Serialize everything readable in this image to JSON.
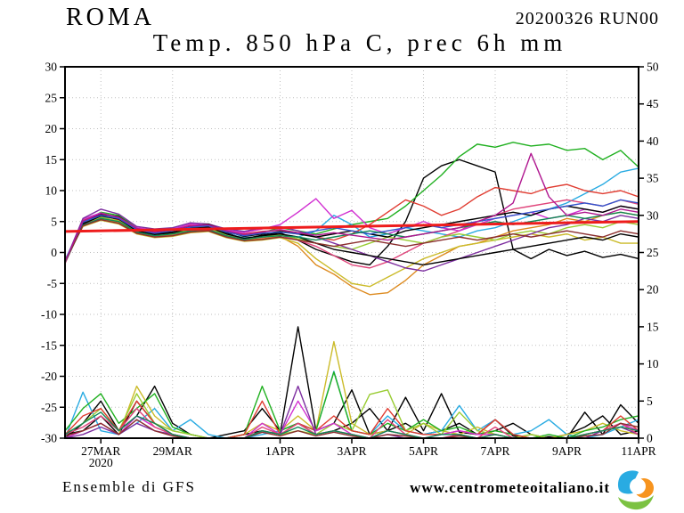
{
  "header": {
    "station": "ROMA",
    "run": "20200326 RUN00",
    "title": "Temp. 850 hPa C, prec 6h mm"
  },
  "footer": {
    "source": "Ensemble di GFS",
    "website": "www.centrometeoitaliano.it",
    "logo_colors": {
      "blue": "#29abe2",
      "orange": "#f7941e",
      "green": "#7cc242"
    }
  },
  "chart_data": {
    "type": "line",
    "title": "Temp. 850 hPa C, prec 6h mm",
    "model": "GFS ensemble",
    "time_steps": 33,
    "step_hours": 12,
    "left_axis": {
      "min": -30,
      "max": 30,
      "step": 5,
      "unit": "C"
    },
    "right_axis": {
      "min": 0,
      "max": 50,
      "step": 5,
      "unit": "mm"
    },
    "grid": "dotted",
    "x_ticks": [
      {
        "pos": 2,
        "label": "27MAR",
        "sublabel": "2020"
      },
      {
        "pos": 6,
        "label": "29MAR"
      },
      {
        "pos": 12,
        "label": "1APR"
      },
      {
        "pos": 16,
        "label": "3APR"
      },
      {
        "pos": 20,
        "label": "5APR"
      },
      {
        "pos": 24,
        "label": "7APR"
      },
      {
        "pos": 28,
        "label": "9APR"
      },
      {
        "pos": 32,
        "label": "11APR"
      }
    ],
    "mean_line": {
      "id": "climate-mean",
      "color": "#ee1c1c",
      "start": 3.4,
      "end": 5.0,
      "width": 3
    },
    "temperature_series": [
      {
        "id": "black-a",
        "color": "#000000",
        "values": [
          -1.5,
          4.5,
          6.0,
          5.5,
          3.6,
          3.0,
          3.4,
          4.0,
          4.4,
          3.2,
          2.2,
          2.8,
          3.2,
          2.0,
          0.5,
          -0.5,
          -1.5,
          -2.0,
          1.0,
          5.0,
          12.0,
          14.0,
          15.0,
          14.0,
          13.0,
          0.5,
          -1.0,
          0.5,
          -0.5,
          0.2,
          -0.8,
          -0.3,
          -1.0
        ]
      },
      {
        "id": "green-a",
        "color": "#20b020",
        "values": [
          -1.5,
          5.0,
          6.5,
          6.0,
          4.0,
          3.2,
          3.8,
          4.2,
          4.0,
          3.5,
          2.8,
          3.2,
          4.0,
          3.5,
          3.0,
          3.8,
          4.5,
          5.0,
          5.5,
          7.5,
          10.0,
          12.5,
          15.5,
          17.5,
          17.0,
          17.8,
          17.2,
          17.5,
          16.5,
          16.8,
          15.0,
          16.5,
          13.8
        ]
      },
      {
        "id": "cyan",
        "color": "#29abe2",
        "values": [
          -1.2,
          4.8,
          5.8,
          5.0,
          3.4,
          2.6,
          3.2,
          3.8,
          4.0,
          3.0,
          2.4,
          2.6,
          3.0,
          2.5,
          3.5,
          6.0,
          4.5,
          2.5,
          3.0,
          4.0,
          3.5,
          3.0,
          2.5,
          3.5,
          4.0,
          5.0,
          6.0,
          7.0,
          8.0,
          9.5,
          11.0,
          13.0,
          13.6
        ]
      },
      {
        "id": "red-a",
        "color": "#e03c31",
        "values": [
          -1.5,
          5.2,
          6.2,
          5.2,
          3.8,
          3.4,
          3.6,
          4.4,
          4.2,
          3.4,
          3.0,
          3.4,
          3.6,
          3.2,
          2.5,
          2.0,
          3.0,
          4.5,
          6.5,
          8.5,
          7.5,
          6.0,
          7.0,
          9.0,
          10.5,
          10.0,
          9.5,
          10.5,
          11.0,
          10.0,
          9.5,
          10.0,
          9.0
        ]
      },
      {
        "id": "crimson",
        "color": "#e0457b",
        "values": [
          -1.8,
          4.6,
          5.6,
          5.0,
          3.4,
          2.8,
          3.0,
          3.6,
          3.8,
          2.8,
          2.2,
          2.4,
          2.8,
          2.0,
          1.0,
          -0.5,
          -2.0,
          -2.5,
          -1.5,
          0.0,
          1.5,
          2.5,
          3.5,
          5.0,
          6.0,
          7.0,
          7.5,
          8.0,
          8.5,
          8.0,
          7.5,
          8.5,
          7.8
        ]
      },
      {
        "id": "orange",
        "color": "#dd8a1e",
        "values": [
          -1.5,
          4.4,
          5.4,
          4.8,
          3.2,
          2.6,
          2.8,
          3.4,
          3.6,
          2.6,
          2.0,
          2.2,
          2.6,
          1.0,
          -2.0,
          -3.5,
          -5.5,
          -6.8,
          -6.5,
          -4.5,
          -2.0,
          -0.5,
          1.0,
          1.5,
          2.5,
          3.5,
          4.0,
          4.5,
          5.5,
          5.0,
          6.0,
          6.5,
          6.0
        ]
      },
      {
        "id": "gold",
        "color": "#cbbb2a",
        "values": [
          -1.2,
          4.2,
          5.2,
          4.6,
          3.0,
          2.4,
          2.6,
          3.2,
          3.4,
          2.4,
          1.8,
          2.0,
          2.4,
          1.5,
          -1.0,
          -3.0,
          -5.0,
          -5.5,
          -4.0,
          -2.5,
          -1.0,
          0.0,
          1.0,
          1.5,
          2.0,
          2.5,
          3.0,
          2.5,
          3.0,
          2.0,
          2.5,
          1.5,
          1.5
        ]
      },
      {
        "id": "yellow-green",
        "color": "#99cc33",
        "values": [
          -1.4,
          4.7,
          5.7,
          5.1,
          3.5,
          2.9,
          3.1,
          3.7,
          3.9,
          2.9,
          2.3,
          2.5,
          2.9,
          2.2,
          1.5,
          1.0,
          0.5,
          1.5,
          2.5,
          2.0,
          1.5,
          2.5,
          3.0,
          2.5,
          2.0,
          3.0,
          3.5,
          3.0,
          4.0,
          4.5,
          4.0,
          5.0,
          4.5
        ]
      },
      {
        "id": "magenta",
        "color": "#d12fd1",
        "values": [
          -1.6,
          5.4,
          6.4,
          5.6,
          4.0,
          3.6,
          3.8,
          4.6,
          4.4,
          3.6,
          3.2,
          3.8,
          4.5,
          6.5,
          8.7,
          5.5,
          6.8,
          4.0,
          3.0,
          4.0,
          5.0,
          4.0,
          3.5,
          4.5,
          5.5,
          6.0,
          6.5,
          5.5,
          6.0,
          7.0,
          6.5,
          7.5,
          7.0
        ]
      },
      {
        "id": "purple",
        "color": "#7d2ea0",
        "values": [
          -1.5,
          5.5,
          7.0,
          6.2,
          4.2,
          3.8,
          4.0,
          4.8,
          4.6,
          3.8,
          3.4,
          4.0,
          4.2,
          3.5,
          2.5,
          1.5,
          0.5,
          -0.5,
          -1.5,
          -2.5,
          -3.0,
          -2.0,
          -1.0,
          0.0,
          1.0,
          2.0,
          3.0,
          4.0,
          4.5,
          5.5,
          5.0,
          6.0,
          5.5
        ]
      },
      {
        "id": "black-b",
        "color": "#000000",
        "values": [
          -1.5,
          4.8,
          6.2,
          5.8,
          3.8,
          3.2,
          3.6,
          4.2,
          4.6,
          3.4,
          2.6,
          3.0,
          3.4,
          3.0,
          2.5,
          3.0,
          3.5,
          3.0,
          2.5,
          3.5,
          4.0,
          4.5,
          5.0,
          5.5,
          6.0,
          6.5,
          6.0,
          7.0,
          7.5,
          7.0,
          6.5,
          7.5,
          7.0
        ]
      },
      {
        "id": "black-c",
        "color": "#000000",
        "values": [
          -1.5,
          4.6,
          5.9,
          5.4,
          3.5,
          2.9,
          3.2,
          3.9,
          4.1,
          3.0,
          2.3,
          2.7,
          3.0,
          2.5,
          1.5,
          0.5,
          0.0,
          -0.5,
          -1.0,
          -1.5,
          -2.0,
          -1.5,
          -1.0,
          -0.5,
          0.0,
          0.5,
          1.0,
          1.5,
          2.0,
          2.5,
          2.0,
          3.0,
          2.5
        ]
      },
      {
        "id": "blue",
        "color": "#3355cc",
        "values": [
          -1.3,
          4.9,
          6.0,
          5.5,
          3.7,
          3.1,
          3.5,
          4.1,
          4.3,
          3.3,
          2.7,
          3.1,
          3.3,
          3.0,
          3.5,
          4.0,
          3.5,
          3.0,
          3.5,
          4.0,
          4.5,
          4.0,
          4.5,
          5.0,
          5.5,
          6.0,
          6.5,
          7.0,
          7.5,
          8.0,
          7.5,
          8.5,
          8.0
        ]
      },
      {
        "id": "teal",
        "color": "#118855",
        "values": [
          -1.6,
          4.4,
          5.5,
          5.0,
          3.3,
          2.7,
          3.0,
          3.5,
          3.7,
          2.7,
          2.1,
          2.5,
          2.7,
          2.5,
          2.0,
          2.5,
          3.0,
          3.5,
          3.0,
          2.5,
          3.0,
          3.5,
          4.0,
          4.5,
          5.0,
          4.5,
          5.0,
          5.5,
          6.0,
          5.5,
          6.0,
          6.5,
          6.0
        ]
      },
      {
        "id": "maroon",
        "color": "#8b2e2e",
        "values": [
          -1.4,
          4.3,
          5.3,
          4.7,
          3.1,
          2.5,
          2.7,
          3.3,
          3.5,
          2.5,
          1.9,
          2.1,
          2.5,
          2.0,
          1.5,
          1.0,
          1.5,
          2.0,
          1.5,
          1.0,
          1.5,
          2.0,
          2.5,
          2.0,
          2.5,
          3.0,
          2.5,
          3.0,
          3.5,
          3.0,
          2.5,
          3.5,
          3.0
        ]
      },
      {
        "id": "violet",
        "color": "#b01890",
        "values": [
          -1.5,
          5.1,
          6.3,
          5.7,
          3.9,
          3.3,
          3.7,
          4.3,
          4.5,
          3.5,
          2.9,
          3.3,
          3.7,
          3.2,
          2.8,
          3.2,
          2.8,
          2.4,
          2.0,
          2.5,
          3.0,
          3.5,
          4.0,
          5.0,
          6.0,
          8.0,
          16.0,
          9.0,
          6.0,
          6.5,
          6.0,
          7.0,
          6.5
        ]
      }
    ],
    "precipitation_series": [
      {
        "id": "p-black-a",
        "color": "#000000",
        "values": [
          0,
          2,
          5,
          1,
          3,
          7,
          2,
          0.5,
          0,
          0,
          0.5,
          1,
          0.5,
          15,
          1,
          2,
          6.5,
          0.5,
          1,
          5.5,
          1,
          6,
          0.8,
          0.5,
          2.5,
          0.3,
          0,
          0.2,
          0,
          3.5,
          0.5,
          4.5,
          2
        ]
      },
      {
        "id": "p-black-b",
        "color": "#000000",
        "values": [
          0.5,
          1,
          3,
          0.5,
          5,
          2,
          0.5,
          0,
          0,
          0.5,
          1,
          4,
          1,
          2,
          0.5,
          1,
          2,
          4,
          1,
          2,
          0.5,
          1,
          2,
          0.5,
          1,
          2,
          0.5,
          0,
          0.5,
          1.5,
          3,
          0.5,
          1
        ]
      },
      {
        "id": "p-cyan",
        "color": "#29abe2",
        "values": [
          0,
          6.2,
          1,
          0.5,
          2,
          4,
          1,
          2.5,
          0.5,
          0,
          0,
          0.5,
          1,
          2,
          1,
          9,
          1,
          0.5,
          3,
          1,
          0.5,
          1,
          4.4,
          1,
          2.5,
          0.5,
          1,
          2.5,
          0.5,
          0,
          0.5,
          1.5,
          2.5
        ]
      },
      {
        "id": "p-gold",
        "color": "#cbbb2a",
        "values": [
          0,
          1,
          2,
          0.5,
          7,
          3,
          1,
          0.5,
          0,
          0,
          0.5,
          2,
          1,
          3,
          1,
          13,
          2,
          0.5,
          1,
          0.5,
          2,
          1,
          0.5,
          1.5,
          0.5,
          0,
          0.5,
          0,
          0.5,
          1,
          2,
          1,
          0.5
        ]
      },
      {
        "id": "p-green",
        "color": "#20b020",
        "values": [
          1,
          4,
          6,
          2,
          4,
          6,
          1.5,
          0.5,
          0,
          0,
          0.5,
          7,
          1,
          2,
          1,
          8.9,
          1,
          0.5,
          2,
          1,
          2.5,
          1,
          1.5,
          0.5,
          1,
          0.5,
          0,
          0.5,
          0,
          1,
          1.5,
          2.5,
          3
        ]
      },
      {
        "id": "p-yellow-green",
        "color": "#99cc33",
        "values": [
          0.5,
          2,
          4,
          1,
          6,
          2,
          1,
          0.5,
          0,
          0,
          0,
          1,
          0.5,
          1,
          0.5,
          2,
          1,
          5.9,
          6.5,
          1,
          2,
          0.5,
          3.5,
          1,
          0.5,
          0,
          0.5,
          0,
          0,
          0.5,
          1,
          2,
          1
        ]
      },
      {
        "id": "p-red",
        "color": "#e03c31",
        "values": [
          0.5,
          3,
          4,
          1,
          5,
          2,
          0.5,
          0,
          0,
          0,
          0.5,
          5,
          0.5,
          2,
          1,
          3,
          1,
          0.5,
          4,
          1,
          0.5,
          0.5,
          1,
          0.5,
          2.5,
          0.5,
          0,
          0,
          0,
          0.5,
          1,
          3,
          1
        ]
      },
      {
        "id": "p-magenta",
        "color": "#d12fd1",
        "values": [
          0,
          1,
          2,
          0.5,
          3,
          1.5,
          0.5,
          0,
          0,
          0,
          0,
          2,
          0.5,
          5,
          1,
          2,
          0.5,
          0,
          1,
          0.5,
          0,
          0.5,
          1,
          0.5,
          0.5,
          0,
          0,
          0,
          0,
          0.5,
          1,
          2,
          1
        ]
      },
      {
        "id": "p-purple",
        "color": "#7d2ea0",
        "values": [
          0,
          0.5,
          1.5,
          0.5,
          2,
          1,
          0.5,
          0,
          0,
          0,
          0,
          1,
          0.5,
          7,
          0.5,
          1,
          0.5,
          0,
          0.5,
          0,
          0,
          0,
          0.5,
          0,
          0,
          0,
          0,
          0,
          0,
          0,
          1,
          1.5,
          0.5
        ]
      },
      {
        "id": "p-crimson",
        "color": "#e0457b",
        "values": [
          0.5,
          1.5,
          3,
          1,
          4,
          1.5,
          0.5,
          0,
          0,
          0,
          0,
          1.5,
          0.5,
          2,
          0.5,
          1,
          0.5,
          0,
          2.5,
          0.5,
          0,
          0,
          0.5,
          0,
          1.5,
          0,
          0,
          0,
          0,
          0.5,
          1,
          2,
          0.5
        ]
      },
      {
        "id": "p-maroon",
        "color": "#8b2e2e",
        "values": [
          0.3,
          1,
          2,
          0.5,
          2.5,
          1,
          0.3,
          0,
          0,
          0,
          0,
          0.8,
          0.3,
          1,
          0.3,
          0.8,
          0.3,
          0,
          0.5,
          0.3,
          0,
          0,
          0.3,
          0,
          0.5,
          0,
          0,
          0,
          0,
          0.3,
          0.5,
          2,
          1.5
        ]
      },
      {
        "id": "p-teal",
        "color": "#118855",
        "values": [
          0.5,
          2,
          3.5,
          1,
          3,
          2,
          0.5,
          0,
          0,
          0,
          0,
          1,
          0.5,
          1.5,
          0.5,
          1,
          0.5,
          0,
          1,
          0.5,
          0,
          0.5,
          0.5,
          0,
          0.5,
          0,
          0,
          0,
          0,
          0.5,
          1,
          1.5,
          1
        ]
      }
    ]
  }
}
